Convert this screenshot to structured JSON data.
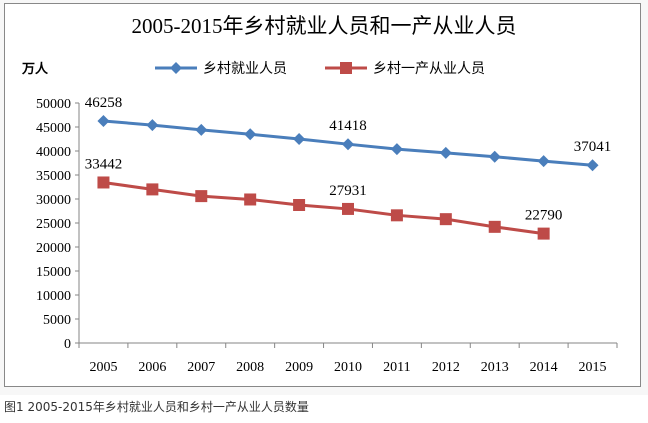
{
  "chart_data": {
    "type": "line",
    "title": "2005-2015年乡村就业人员和一产从业人员",
    "ylabel": "万人",
    "xlabel": "",
    "categories": [
      "2005",
      "2006",
      "2007",
      "2008",
      "2009",
      "2010",
      "2011",
      "2012",
      "2013",
      "2014",
      "2015"
    ],
    "ylim": [
      0,
      50000
    ],
    "yticks": [
      0,
      5000,
      10000,
      15000,
      20000,
      25000,
      30000,
      35000,
      40000,
      45000,
      50000
    ],
    "grid": false,
    "legend_position": "top",
    "series": [
      {
        "name": "乡村就业人员",
        "color": "#4a7ebb",
        "marker": "diamond",
        "values": [
          46258,
          45400,
          44400,
          43500,
          42500,
          41418,
          40400,
          39600,
          38800,
          37900,
          37041
        ],
        "data_labels": {
          "0": "46258",
          "5": "41418",
          "10": "37041"
        }
      },
      {
        "name": "乡村一产从业人员",
        "color": "#be4b48",
        "marker": "square",
        "values": [
          33442,
          32000,
          30600,
          29900,
          28750,
          27931,
          26600,
          25800,
          24200,
          22790,
          null
        ],
        "data_labels": {
          "0": "33442",
          "5": "27931",
          "9": "22790"
        }
      }
    ]
  },
  "caption": "图1 2005-2015年乡村就业人员和乡村一产从业人员数量"
}
